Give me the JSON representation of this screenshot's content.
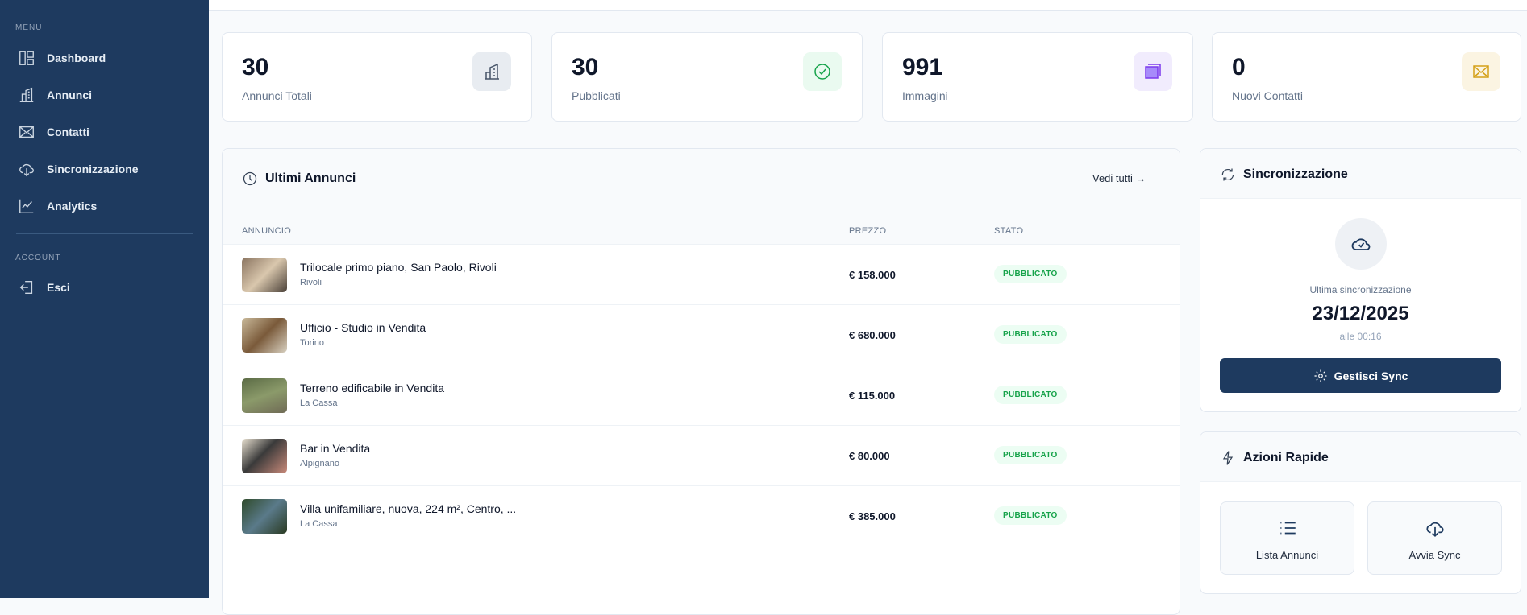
{
  "sidebar": {
    "menu_label": "MENU",
    "items": [
      {
        "label": "Dashboard",
        "icon": "layout-icon"
      },
      {
        "label": "Annunci",
        "icon": "building-icon"
      },
      {
        "label": "Contatti",
        "icon": "envelope-icon"
      },
      {
        "label": "Sincronizzazione",
        "icon": "cloud-download-icon"
      },
      {
        "label": "Analytics",
        "icon": "chart-line-icon"
      }
    ],
    "account_label": "ACCOUNT",
    "logout_label": "Esci"
  },
  "stats": [
    {
      "value": "30",
      "label": "Annunci Totali",
      "color": "#475569"
    },
    {
      "value": "30",
      "label": "Pubblicati",
      "color": "#16a34a"
    },
    {
      "value": "991",
      "label": "Immagini",
      "color": "#7c3aed"
    },
    {
      "value": "0",
      "label": "Nuovi Contatti",
      "color": "#d4a017"
    }
  ],
  "listings": {
    "title": "Ultimi Annunci",
    "view_all": "Vedi tutti →",
    "columns": [
      "ANNUNCIO",
      "PREZZO",
      "STATO"
    ],
    "rows": [
      {
        "title": "Trilocale primo piano, San Paolo, Rivoli",
        "city": "Rivoli",
        "price": "€ 158.000",
        "status": "PUBBLICATO"
      },
      {
        "title": "Ufficio - Studio in Vendita",
        "city": "Torino",
        "price": "€ 680.000",
        "status": "PUBBLICATO"
      },
      {
        "title": "Terreno edificabile in Vendita",
        "city": "La Cassa",
        "price": "€ 115.000",
        "status": "PUBBLICATO"
      },
      {
        "title": "Bar in Vendita",
        "city": "Alpignano",
        "price": "€ 80.000",
        "status": "PUBBLICATO"
      },
      {
        "title": "Villa unifamiliare, nuova, 224 m², Centro, ...",
        "city": "La Cassa",
        "price": "€ 385.000",
        "status": "PUBBLICATO"
      }
    ]
  },
  "sync": {
    "title": "Sincronizzazione",
    "last_label": "Ultima sincronizzazione",
    "date": "23/12/2025",
    "time": "alle 00:16",
    "button": "Gestisci Sync"
  },
  "quick": {
    "title": "Azioni Rapide",
    "actions": [
      {
        "label": "Lista Annunci"
      },
      {
        "label": "Avvia Sync"
      }
    ]
  }
}
